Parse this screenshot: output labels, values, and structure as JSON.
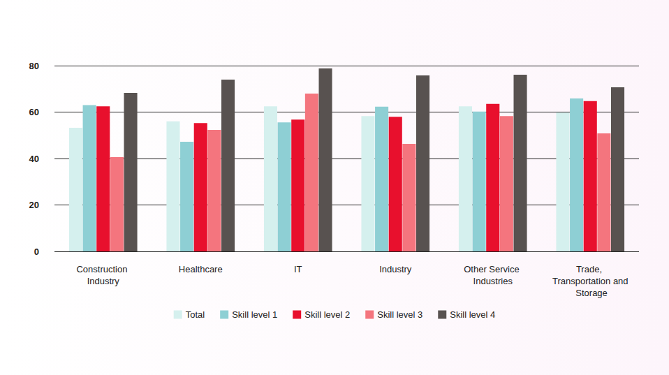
{
  "chart_data": {
    "type": "bar",
    "categories": [
      "Construction Industry",
      "Healthcare",
      "IT",
      "Industry",
      "Other Service Industries",
      "Trade, Transportation and Storage"
    ],
    "series": [
      {
        "name": "Total",
        "color": "#d5f0ee",
        "values": [
          53.2,
          56.0,
          62.5,
          58.3,
          62.5,
          59.8
        ]
      },
      {
        "name": "Skill level 1",
        "color": "#8ecfd4",
        "values": [
          63.0,
          47.2,
          55.6,
          62.3,
          60.2,
          65.9
        ]
      },
      {
        "name": "Skill level 2",
        "color": "#e8102d",
        "values": [
          62.5,
          55.3,
          56.8,
          58.0,
          63.5,
          64.7
        ]
      },
      {
        "name": "Skill level 3",
        "color": "#f4757e",
        "values": [
          40.6,
          52.3,
          68.0,
          46.3,
          58.3,
          50.8
        ]
      },
      {
        "name": "Skill level 4",
        "color": "#585250",
        "values": [
          68.3,
          74.0,
          78.8,
          75.8,
          76.1,
          70.7
        ]
      }
    ],
    "ylim": [
      0,
      80
    ],
    "yticks": [
      0,
      20,
      40,
      60,
      80
    ],
    "grid": true,
    "legend": "bottom"
  }
}
